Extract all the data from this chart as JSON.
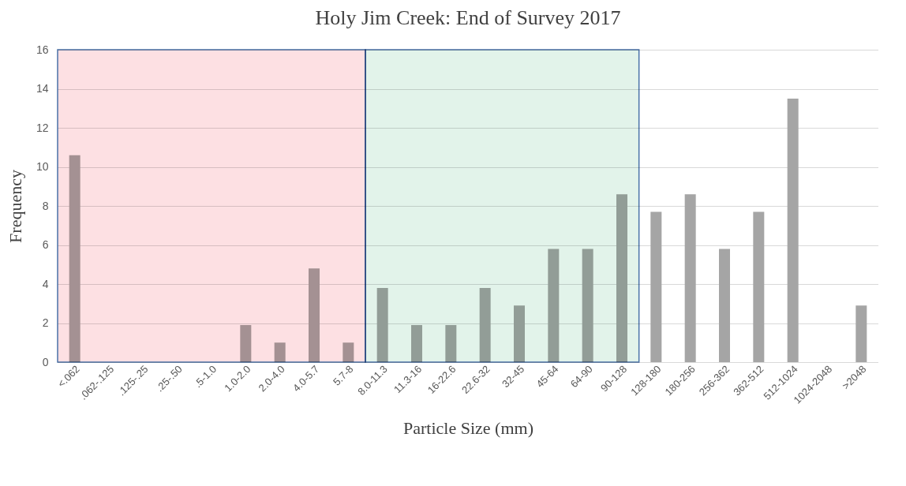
{
  "chart_data": {
    "type": "bar",
    "title": "Holy Jim Creek: End of Survey 2017",
    "xlabel": "Particle Size (mm)",
    "ylabel": "Frequency",
    "categories": [
      "<.062",
      ".062-.125",
      ".125-.25",
      ".25-.50",
      ".5-1.0",
      "1.0-2.0",
      "2.0-4.0",
      "4.0-5.7",
      "5.7-8",
      "8.0-11.3",
      "11.3-16",
      "16-22.6",
      "22.6-32",
      "32-45",
      "45-64",
      "64-90",
      "90-128",
      "128-180",
      "180-256",
      "256-362",
      "362-512",
      "512-1024",
      "1024-2048",
      ">2048"
    ],
    "values": [
      10.6,
      0,
      0,
      0,
      0,
      1.9,
      1.0,
      4.8,
      1.0,
      3.8,
      1.9,
      1.9,
      3.8,
      2.9,
      5.8,
      5.8,
      8.6,
      7.7,
      8.6,
      5.8,
      7.7,
      13.5,
      0,
      2.9
    ],
    "color": "#a5a5a5",
    "ylim": [
      0,
      16
    ],
    "yticks": [
      0,
      2,
      4,
      6,
      8,
      10,
      12,
      14,
      16
    ],
    "grid": "y",
    "bands": [
      {
        "axis": "x",
        "from": "<.062",
        "to": "5.7-8",
        "color": "#fde0e3"
      },
      {
        "axis": "x",
        "from": "8.0-11.3",
        "to": "90-128",
        "color": "#e2f3ea"
      }
    ]
  }
}
